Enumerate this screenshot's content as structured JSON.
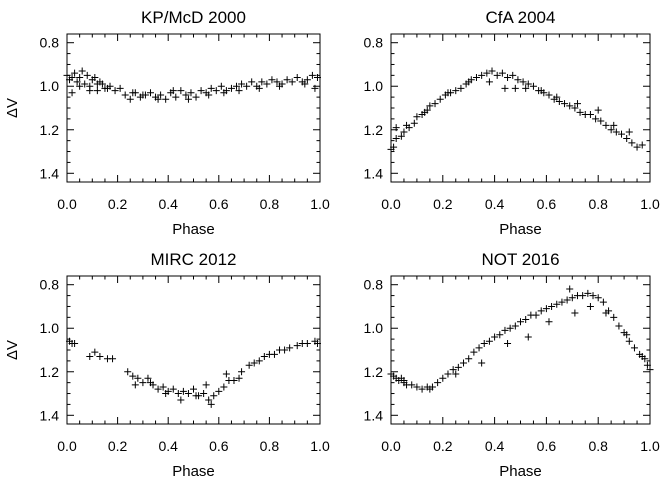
{
  "chart_data": [
    {
      "type": "scatter",
      "title": "KP/McD 2000",
      "xlabel": "Phase",
      "ylabel": "ΔV",
      "xlim": [
        0.0,
        1.0
      ],
      "ylim": [
        1.44,
        0.76
      ],
      "y_inverted": true,
      "xticks": [
        "0.0",
        "0.2",
        "0.4",
        "0.6",
        "0.8",
        "1.0"
      ],
      "yticks": [
        "0.8",
        "1.0",
        "1.2",
        "1.4"
      ],
      "marker": "plus",
      "x": [
        0.0,
        0.01,
        0.02,
        0.03,
        0.04,
        0.05,
        0.06,
        0.07,
        0.08,
        0.09,
        0.1,
        0.11,
        0.12,
        0.13,
        0.14,
        0.15,
        0.17,
        0.19,
        0.21,
        0.23,
        0.25,
        0.27,
        0.29,
        0.31,
        0.33,
        0.35,
        0.37,
        0.39,
        0.41,
        0.43,
        0.45,
        0.47,
        0.49,
        0.51,
        0.53,
        0.55,
        0.57,
        0.59,
        0.61,
        0.63,
        0.65,
        0.67,
        0.69,
        0.71,
        0.73,
        0.75,
        0.77,
        0.79,
        0.81,
        0.83,
        0.85,
        0.87,
        0.89,
        0.91,
        0.93,
        0.95,
        0.97,
        0.99,
        0.02,
        0.05,
        0.09,
        0.12,
        0.16,
        0.26,
        0.3,
        0.36,
        0.42,
        0.48,
        0.56,
        0.62,
        0.68,
        0.76,
        0.84,
        0.94,
        0.98
      ],
      "y": [
        0.95,
        0.97,
        0.96,
        0.94,
        0.98,
        0.96,
        0.93,
        0.99,
        0.95,
        1.0,
        0.97,
        0.96,
        1.02,
        0.98,
        0.99,
        1.01,
        1.0,
        1.02,
        1.01,
        1.04,
        1.06,
        1.03,
        1.05,
        1.04,
        1.03,
        1.05,
        1.04,
        1.06,
        1.03,
        1.05,
        1.02,
        1.04,
        1.03,
        1.05,
        1.02,
        1.03,
        1.01,
        1.02,
        1.0,
        1.02,
        1.01,
        1.0,
        0.99,
        1.0,
        0.98,
        1.0,
        0.98,
        0.99,
        0.97,
        0.98,
        0.99,
        0.97,
        0.98,
        0.96,
        0.98,
        0.97,
        0.95,
        0.96,
        1.03,
        1.0,
        1.02,
        0.99,
        1.01,
        1.03,
        1.04,
        1.06,
        1.02,
        1.06,
        1.04,
        1.03,
        1.02,
        1.01,
        1.0,
        0.99,
        1.01
      ]
    },
    {
      "type": "scatter",
      "title": "CfA 2004",
      "xlabel": "Phase",
      "ylabel": "",
      "xlim": [
        0.0,
        1.0
      ],
      "ylim": [
        1.44,
        0.76
      ],
      "y_inverted": true,
      "xticks": [
        "0.0",
        "0.2",
        "0.4",
        "0.6",
        "0.8",
        "1.0"
      ],
      "yticks": [
        "0.8",
        "1.0",
        "1.2",
        "1.4"
      ],
      "marker": "plus",
      "x": [
        0.0,
        0.01,
        0.02,
        0.04,
        0.05,
        0.07,
        0.09,
        0.1,
        0.12,
        0.13,
        0.15,
        0.17,
        0.19,
        0.21,
        0.23,
        0.25,
        0.27,
        0.29,
        0.31,
        0.33,
        0.35,
        0.37,
        0.39,
        0.41,
        0.43,
        0.45,
        0.47,
        0.49,
        0.51,
        0.53,
        0.55,
        0.57,
        0.59,
        0.61,
        0.63,
        0.65,
        0.67,
        0.69,
        0.71,
        0.73,
        0.75,
        0.77,
        0.79,
        0.81,
        0.83,
        0.85,
        0.87,
        0.89,
        0.91,
        0.93,
        0.95,
        0.97,
        0.02,
        0.06,
        0.14,
        0.22,
        0.3,
        0.38,
        0.44,
        0.48,
        0.52,
        0.58,
        0.64,
        0.72,
        0.8,
        0.86,
        0.92
      ],
      "y": [
        1.29,
        1.28,
        1.19,
        1.23,
        1.21,
        1.19,
        1.17,
        1.14,
        1.13,
        1.12,
        1.09,
        1.08,
        1.06,
        1.04,
        1.03,
        1.02,
        1.01,
        0.99,
        0.97,
        0.96,
        0.95,
        0.94,
        0.93,
        0.95,
        0.94,
        0.96,
        0.95,
        0.97,
        0.98,
        0.99,
        1.0,
        1.02,
        1.03,
        1.04,
        1.06,
        1.07,
        1.08,
        1.09,
        1.1,
        1.12,
        1.13,
        1.13,
        1.15,
        1.16,
        1.18,
        1.2,
        1.21,
        1.22,
        1.24,
        1.26,
        1.28,
        1.27,
        1.24,
        1.18,
        1.11,
        1.03,
        0.98,
        0.98,
        1.01,
        1.01,
        1.01,
        1.02,
        1.05,
        1.08,
        1.11,
        1.18,
        1.21
      ]
    },
    {
      "type": "scatter",
      "title": "MIRC 2012",
      "xlabel": "Phase",
      "ylabel": "ΔV",
      "xlim": [
        0.0,
        1.0
      ],
      "ylim": [
        1.44,
        0.76
      ],
      "y_inverted": true,
      "xticks": [
        "0.0",
        "0.2",
        "0.4",
        "0.6",
        "0.8",
        "1.0"
      ],
      "yticks": [
        "0.8",
        "1.0",
        "1.2",
        "1.4"
      ],
      "marker": "plus",
      "x": [
        0.01,
        0.02,
        0.03,
        0.09,
        0.11,
        0.13,
        0.16,
        0.18,
        0.24,
        0.26,
        0.28,
        0.3,
        0.32,
        0.34,
        0.36,
        0.38,
        0.4,
        0.42,
        0.44,
        0.46,
        0.48,
        0.5,
        0.52,
        0.54,
        0.56,
        0.58,
        0.6,
        0.62,
        0.64,
        0.66,
        0.68,
        0.72,
        0.74,
        0.76,
        0.78,
        0.8,
        0.82,
        0.84,
        0.86,
        0.88,
        0.91,
        0.93,
        0.95,
        0.98,
        0.99,
        0.27,
        0.33,
        0.39,
        0.45,
        0.51,
        0.55,
        0.57,
        0.63,
        0.69
      ],
      "y": [
        1.06,
        1.07,
        1.07,
        1.13,
        1.11,
        1.13,
        1.14,
        1.14,
        1.2,
        1.22,
        1.23,
        1.25,
        1.23,
        1.26,
        1.28,
        1.27,
        1.29,
        1.28,
        1.3,
        1.29,
        1.3,
        1.28,
        1.31,
        1.3,
        1.33,
        1.31,
        1.29,
        1.27,
        1.24,
        1.24,
        1.23,
        1.17,
        1.16,
        1.15,
        1.13,
        1.12,
        1.12,
        1.1,
        1.1,
        1.09,
        1.08,
        1.07,
        1.07,
        1.06,
        1.07,
        1.26,
        1.25,
        1.3,
        1.33,
        1.31,
        1.26,
        1.35,
        1.21,
        1.2
      ]
    },
    {
      "type": "scatter",
      "title": "NOT 2016",
      "xlabel": "Phase",
      "ylabel": "",
      "xlim": [
        0.0,
        1.0
      ],
      "ylim": [
        1.44,
        0.76
      ],
      "y_inverted": true,
      "xticks": [
        "0.0",
        "0.2",
        "0.4",
        "0.6",
        "0.8",
        "1.0"
      ],
      "yticks": [
        "0.8",
        "1.0",
        "1.2",
        "1.4"
      ],
      "marker": "plus",
      "x": [
        0.0,
        0.01,
        0.02,
        0.03,
        0.04,
        0.05,
        0.06,
        0.08,
        0.1,
        0.12,
        0.14,
        0.16,
        0.18,
        0.2,
        0.22,
        0.24,
        0.26,
        0.28,
        0.3,
        0.32,
        0.34,
        0.36,
        0.38,
        0.4,
        0.42,
        0.44,
        0.46,
        0.48,
        0.5,
        0.52,
        0.54,
        0.56,
        0.58,
        0.6,
        0.62,
        0.64,
        0.66,
        0.68,
        0.7,
        0.72,
        0.74,
        0.76,
        0.78,
        0.8,
        0.82,
        0.84,
        0.86,
        0.88,
        0.9,
        0.92,
        0.94,
        0.96,
        0.98,
        0.99,
        1.0,
        0.05,
        0.15,
        0.25,
        0.35,
        0.45,
        0.53,
        0.61,
        0.69,
        0.71,
        0.77,
        0.83,
        0.91,
        0.97
      ],
      "y": [
        1.21,
        1.22,
        1.23,
        1.24,
        1.23,
        1.25,
        1.26,
        1.26,
        1.27,
        1.28,
        1.27,
        1.27,
        1.25,
        1.23,
        1.21,
        1.19,
        1.18,
        1.16,
        1.14,
        1.11,
        1.09,
        1.07,
        1.06,
        1.04,
        1.03,
        1.01,
        1.0,
        0.99,
        0.97,
        0.96,
        0.94,
        0.94,
        0.92,
        0.91,
        0.9,
        0.89,
        0.88,
        0.87,
        0.86,
        0.85,
        0.85,
        0.84,
        0.85,
        0.86,
        0.88,
        0.92,
        0.95,
        0.99,
        1.02,
        1.06,
        1.09,
        1.12,
        1.14,
        1.17,
        1.19,
        1.24,
        1.28,
        1.21,
        1.16,
        1.07,
        1.04,
        0.97,
        0.82,
        0.93,
        0.9,
        0.93,
        1.03,
        1.13
      ]
    }
  ]
}
